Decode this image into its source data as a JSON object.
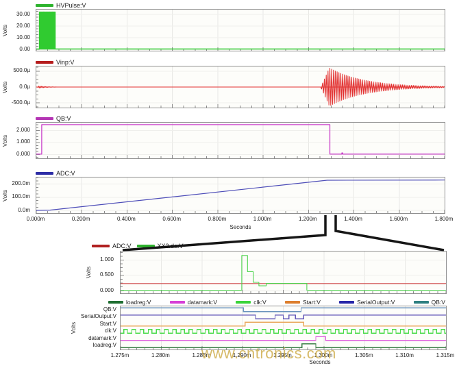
{
  "watermark": {
    "text": "www.cntronics.com",
    "color": "#cda943"
  },
  "chart_data": [
    {
      "key": "hvpulse-plot",
      "type": "line",
      "legend": [
        {
          "label": "HVPulse:V",
          "color": "#2db32d"
        }
      ],
      "ylabel": "Volts",
      "xlim": [
        0,
        1.8
      ],
      "ylim": [
        -1.2,
        34.1
      ],
      "yticks": [
        {
          "v": 30,
          "label": "30.00"
        },
        {
          "v": 20,
          "label": "20.00"
        },
        {
          "v": 10,
          "label": "10.00"
        },
        {
          "v": 0,
          "label": "0.00"
        }
      ],
      "yminor": 2.5,
      "xminor": 0.05,
      "xgrid": [
        0.2,
        0.4,
        0.6,
        0.8,
        1.0,
        1.2,
        1.4,
        1.6
      ],
      "series": [
        {
          "name": "HVPulse:V",
          "color": "#30cb30",
          "width": 1.5,
          "type": "comb",
          "base": [
            0,
            1.8
          ],
          "t0": 0.014,
          "t1": 0.082,
          "period": 0.0055,
          "duty": 0.55,
          "high": 32,
          "low": 0.25
        }
      ]
    },
    {
      "key": "vinp-plot",
      "type": "line",
      "legend": [
        {
          "label": "Vinp:V",
          "color": "#b51d1d"
        }
      ],
      "ylabel": "Volts",
      "xlim": [
        0,
        1.8
      ],
      "ylim": [
        -646,
        646
      ],
      "yticks": [
        {
          "v": 500,
          "label": "500.0µ"
        },
        {
          "v": 0,
          "label": "0.0µ"
        },
        {
          "v": -500,
          "label": "-500.0µ"
        }
      ],
      "yminor": 125,
      "xminor": 0.05,
      "xgrid": [
        0.2,
        0.4,
        0.6,
        0.8,
        1.0,
        1.2,
        1.4,
        1.6
      ],
      "series": [
        {
          "name": "Vinp:V",
          "color": "#e23030",
          "width": 1,
          "type": "poly",
          "points": [
            [
              0,
              0
            ],
            [
              1.8,
              0
            ]
          ]
        },
        {
          "color": "#e23030",
          "width": 1,
          "type": "damped",
          "t0": 0.005,
          "tpk": 0.011,
          "t1": 0.09,
          "amp": 30,
          "tau": 0.035,
          "hp": 0.003
        },
        {
          "color": "#e23030",
          "width": 1,
          "type": "damped",
          "t0": 1.254,
          "tpk": 1.292,
          "t1": 1.8,
          "amp": 600,
          "tau": 0.15,
          "hp": 0.004
        }
      ]
    },
    {
      "key": "qb-plot",
      "type": "line",
      "legend": [
        {
          "label": "QB:V",
          "color": "#b435b4"
        }
      ],
      "ylabel": "Volts",
      "xlim": [
        0,
        1.8
      ],
      "ylim": [
        -0.33,
        2.67
      ],
      "yticks": [
        {
          "v": 2,
          "label": "2.000"
        },
        {
          "v": 1,
          "label": "1.000"
        },
        {
          "v": 0,
          "label": "0.000"
        }
      ],
      "yminor": 0.25,
      "xminor": 0.05,
      "xgrid": [
        0.2,
        0.4,
        0.6,
        0.8,
        1.0,
        1.2,
        1.4,
        1.6
      ],
      "series": [
        {
          "name": "QB:V",
          "color": "#c93fc9",
          "width": 1.3,
          "type": "poly",
          "points": [
            [
              0,
              0.02
            ],
            [
              0.024,
              0.02
            ],
            [
              0.024,
              2.5
            ],
            [
              1.294,
              2.5
            ],
            [
              1.294,
              0.02
            ],
            [
              1.347,
              0.02
            ],
            [
              1.347,
              0.12
            ],
            [
              1.351,
              0.12
            ],
            [
              1.351,
              0.02
            ],
            [
              1.8,
              0.02
            ]
          ]
        }
      ]
    },
    {
      "key": "adc-plot",
      "type": "line",
      "legend": [
        {
          "label": "ADC:V",
          "color": "#2d2da6"
        }
      ],
      "ylabel": "Volts",
      "xlabel": "Seconds",
      "xlim": [
        0,
        1.8
      ],
      "ylim": [
        -0.02,
        0.25
      ],
      "yticks": [
        {
          "v": 0.2,
          "label": "200.0m"
        },
        {
          "v": 0.1,
          "label": "100.0m"
        },
        {
          "v": 0,
          "label": "0.0m"
        }
      ],
      "yminor": 0.025,
      "xminor": 0.05,
      "xgrid": [
        0.2,
        0.4,
        0.6,
        0.8,
        1.0,
        1.2,
        1.4,
        1.6
      ],
      "xticks": [
        {
          "v": 0,
          "label": "0.000m"
        },
        {
          "v": 0.2,
          "label": "0.200m"
        },
        {
          "v": 0.4,
          "label": "0.400m"
        },
        {
          "v": 0.6,
          "label": "0.600m"
        },
        {
          "v": 0.8,
          "label": "0.800m"
        },
        {
          "v": 1.0,
          "label": "1.000m"
        },
        {
          "v": 1.2,
          "label": "1.200m"
        },
        {
          "v": 1.4,
          "label": "1.400m"
        },
        {
          "v": 1.6,
          "label": "1.600m"
        },
        {
          "v": 1.8,
          "label": "1.800m"
        }
      ],
      "series": [
        {
          "name": "ADC:V",
          "color": "#4d4db8",
          "width": 1.2,
          "type": "poly",
          "points": [
            [
              0,
              0.001
            ],
            [
              0.06,
              0.003
            ],
            [
              1.282,
              0.229
            ],
            [
              1.8,
              0.231
            ]
          ]
        }
      ]
    },
    {
      "key": "zoom-detail-plot",
      "type": "line",
      "legend": [
        {
          "label": "ADC:V",
          "color": "#b02020"
        },
        {
          "label": "XX2.da:V",
          "color": "#2db32d"
        }
      ],
      "ylabel": "Volts",
      "xlim": [
        1.275,
        1.315
      ],
      "ylim": [
        -0.09,
        1.28
      ],
      "yticks": [
        {
          "v": 1,
          "label": "1.000"
        },
        {
          "v": 0.5,
          "label": "0.500"
        },
        {
          "v": 0,
          "label": "0.000"
        }
      ],
      "yminor": 0.125,
      "xminor": 0.001,
      "xgrid": [
        1.28,
        1.285,
        1.29,
        1.295,
        1.3,
        1.305,
        1.31
      ],
      "series": [
        {
          "name": "ADC:V",
          "color": "#cf4a4a",
          "width": 1.1,
          "type": "poly",
          "points": [
            [
              1.275,
              0.228
            ],
            [
              1.315,
              0.228
            ]
          ]
        },
        {
          "name": "XX2.da:V",
          "color": "#4fd44f",
          "width": 1.1,
          "type": "poly",
          "points": [
            [
              1.275,
              0.012
            ],
            [
              1.2899,
              0.012
            ],
            [
              1.2899,
              1.15
            ],
            [
              1.2906,
              1.15
            ],
            [
              1.2906,
              0.62
            ],
            [
              1.2913,
              0.62
            ],
            [
              1.2913,
              0.27
            ],
            [
              1.292,
              0.27
            ],
            [
              1.292,
              0.155
            ],
            [
              1.2929,
              0.155
            ],
            [
              1.2929,
              0.235
            ],
            [
              1.2979,
              0.235
            ],
            [
              1.2979,
              0.012
            ],
            [
              1.315,
              0.012
            ]
          ]
        }
      ]
    },
    {
      "key": "digital-bus-plot",
      "type": "line",
      "legend": [
        {
          "label": "loadreg:V",
          "color": "#1e6e31"
        },
        {
          "label": "datamark:V",
          "color": "#d63fd6"
        },
        {
          "label": "clk:V",
          "color": "#39d439"
        },
        {
          "label": "Start:V",
          "color": "#dd7e2c"
        },
        {
          "label": "SerialOutput:V",
          "color": "#2626a8"
        },
        {
          "label": "QB:V",
          "color": "#2d7f80"
        }
      ],
      "ylabel": "Volts",
      "xlabel": "Seconds",
      "xlim": [
        1.275,
        1.315
      ],
      "xminor": 0.001,
      "xgrid": [
        1.28,
        1.285,
        1.29,
        1.295,
        1.3,
        1.305,
        1.31
      ],
      "xticks": [
        {
          "v": 1.275,
          "label": "1.275m"
        },
        {
          "v": 1.28,
          "label": "1.280m"
        },
        {
          "v": 1.285,
          "label": "1.285m"
        },
        {
          "v": 1.29,
          "label": "1.290m"
        },
        {
          "v": 1.295,
          "label": "1.295m"
        },
        {
          "v": 1.3,
          "label": "1.300m"
        },
        {
          "v": 1.305,
          "label": "1.305m"
        },
        {
          "v": 1.31,
          "label": "1.310m"
        },
        {
          "v": 1.315,
          "label": "1.315m"
        }
      ],
      "rows": [
        {
          "label": "QB:V",
          "color": "#6a93bd",
          "signal": {
            "type": "steps",
            "initial": 1,
            "edges": [
              [
                1.2901,
                0
              ],
              [
                1.2972,
                1
              ]
            ]
          }
        },
        {
          "label": "SerialOutput:V",
          "color": "#6358b8",
          "signal": {
            "type": "steps",
            "initial": 1,
            "edges": [
              [
                1.2916,
                0
              ],
              [
                1.294,
                1
              ],
              [
                1.295,
                0
              ],
              [
                1.2957,
                1
              ],
              [
                1.2965,
                0
              ],
              [
                1.2975,
                1
              ]
            ]
          }
        },
        {
          "label": "Start:V",
          "color": "#e9a95e",
          "signal": {
            "type": "steps",
            "initial": 0,
            "edges": [
              [
                1.2903,
                1
              ],
              [
                1.2975,
                0
              ]
            ]
          }
        },
        {
          "label": "clk:V",
          "color": "#4adb4a",
          "signal": {
            "type": "clock",
            "t0": 1.2754,
            "period": 0.001,
            "duty": 0.45
          }
        },
        {
          "label": "datamark:V",
          "color": "#de64de",
          "signal": {
            "type": "steps",
            "initial": 0,
            "edges": [
              [
                1.299,
                1
              ],
              [
                1.3002,
                0
              ]
            ]
          }
        },
        {
          "label": "loadreg:V",
          "color": "#3a7d46",
          "signal": {
            "type": "steps",
            "initial": 0,
            "edges": [
              [
                1.2973,
                1
              ],
              [
                1.299,
                0
              ]
            ]
          }
        }
      ]
    }
  ]
}
